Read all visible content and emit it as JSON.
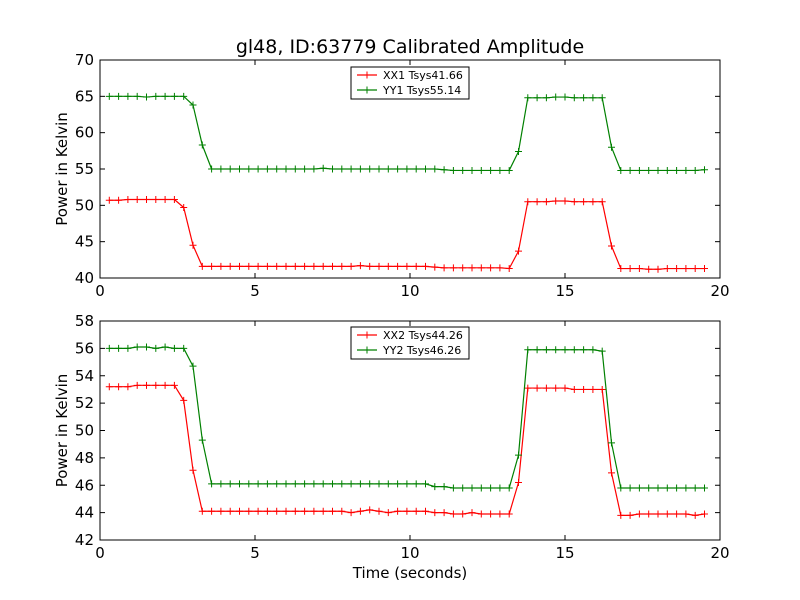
{
  "title": "gl48, ID:63779 Calibrated Amplitude",
  "chart_data": [
    {
      "type": "line",
      "ylabel": "Power in Kelvin",
      "xlabel": "",
      "xlim": [
        0,
        20
      ],
      "ylim": [
        40,
        70
      ],
      "xticks": [
        0,
        5,
        10,
        15,
        20
      ],
      "yticks": [
        40,
        45,
        50,
        55,
        60,
        65,
        70
      ],
      "legend": "top-center",
      "grid": false,
      "x": [
        0.3,
        0.6,
        0.9,
        1.2,
        1.5,
        1.8,
        2.1,
        2.4,
        2.7,
        3.0,
        3.3,
        3.6,
        3.9,
        4.2,
        4.5,
        4.8,
        5.1,
        5.4,
        5.7,
        6.0,
        6.3,
        6.6,
        6.9,
        7.2,
        7.5,
        7.8,
        8.1,
        8.4,
        8.7,
        9.0,
        9.3,
        9.6,
        9.9,
        10.2,
        10.5,
        10.8,
        11.1,
        11.4,
        11.7,
        12.0,
        12.3,
        12.6,
        12.9,
        13.2,
        13.5,
        13.8,
        14.1,
        14.4,
        14.7,
        15.0,
        15.3,
        15.6,
        15.9,
        16.2,
        16.5,
        16.8,
        17.1,
        17.4,
        17.7,
        18.0,
        18.3,
        18.6,
        18.9,
        19.2,
        19.5
      ],
      "series": [
        {
          "name": "XX1 Tsys41.66",
          "color": "#ff0000",
          "values": [
            50.7,
            50.7,
            50.8,
            50.8,
            50.8,
            50.8,
            50.8,
            50.8,
            49.7,
            44.5,
            41.6,
            41.6,
            41.6,
            41.6,
            41.6,
            41.6,
            41.6,
            41.6,
            41.6,
            41.6,
            41.6,
            41.6,
            41.6,
            41.6,
            41.6,
            41.6,
            41.6,
            41.7,
            41.6,
            41.6,
            41.6,
            41.6,
            41.6,
            41.6,
            41.6,
            41.5,
            41.4,
            41.4,
            41.4,
            41.4,
            41.4,
            41.4,
            41.4,
            41.3,
            43.7,
            50.5,
            50.5,
            50.5,
            50.6,
            50.6,
            50.5,
            50.5,
            50.5,
            50.5,
            44.4,
            41.3,
            41.3,
            41.3,
            41.2,
            41.2,
            41.3,
            41.3,
            41.3,
            41.3,
            41.3
          ]
        },
        {
          "name": "YY1 Tsys55.14",
          "color": "#008000",
          "values": [
            65.0,
            65.0,
            65.0,
            65.0,
            64.9,
            65.0,
            65.0,
            65.0,
            65.0,
            63.8,
            58.3,
            55.0,
            55.0,
            55.0,
            55.0,
            55.0,
            55.0,
            55.0,
            55.0,
            55.0,
            55.0,
            55.0,
            55.0,
            55.1,
            55.0,
            55.0,
            55.0,
            55.0,
            55.0,
            55.0,
            55.0,
            55.0,
            55.0,
            55.0,
            55.0,
            55.0,
            54.9,
            54.8,
            54.8,
            54.8,
            54.8,
            54.8,
            54.8,
            54.8,
            57.4,
            64.8,
            64.8,
            64.8,
            64.9,
            64.9,
            64.8,
            64.8,
            64.8,
            64.8,
            58.0,
            54.8,
            54.8,
            54.8,
            54.8,
            54.8,
            54.8,
            54.8,
            54.8,
            54.8,
            54.9
          ]
        }
      ]
    },
    {
      "type": "line",
      "ylabel": "Power in Kelvin",
      "xlabel": "Time (seconds)",
      "xlim": [
        0,
        20
      ],
      "ylim": [
        42,
        58
      ],
      "xticks": [
        0,
        5,
        10,
        15,
        20
      ],
      "yticks": [
        42,
        44,
        46,
        48,
        50,
        52,
        54,
        56,
        58
      ],
      "legend": "top-center",
      "grid": false,
      "x": [
        0.3,
        0.6,
        0.9,
        1.2,
        1.5,
        1.8,
        2.1,
        2.4,
        2.7,
        3.0,
        3.3,
        3.6,
        3.9,
        4.2,
        4.5,
        4.8,
        5.1,
        5.4,
        5.7,
        6.0,
        6.3,
        6.6,
        6.9,
        7.2,
        7.5,
        7.8,
        8.1,
        8.4,
        8.7,
        9.0,
        9.3,
        9.6,
        9.9,
        10.2,
        10.5,
        10.8,
        11.1,
        11.4,
        11.7,
        12.0,
        12.3,
        12.6,
        12.9,
        13.2,
        13.5,
        13.8,
        14.1,
        14.4,
        14.7,
        15.0,
        15.3,
        15.6,
        15.9,
        16.2,
        16.5,
        16.8,
        17.1,
        17.4,
        17.7,
        18.0,
        18.3,
        18.6,
        18.9,
        19.2,
        19.5
      ],
      "series": [
        {
          "name": "XX2 Tsys44.26",
          "color": "#ff0000",
          "values": [
            53.2,
            53.2,
            53.2,
            53.3,
            53.3,
            53.3,
            53.3,
            53.3,
            52.2,
            47.1,
            44.1,
            44.1,
            44.1,
            44.1,
            44.1,
            44.1,
            44.1,
            44.1,
            44.1,
            44.1,
            44.1,
            44.1,
            44.1,
            44.1,
            44.1,
            44.1,
            44.0,
            44.1,
            44.2,
            44.1,
            44.0,
            44.1,
            44.1,
            44.1,
            44.1,
            44.0,
            44.0,
            43.9,
            43.9,
            44.0,
            43.9,
            43.9,
            43.9,
            43.9,
            46.2,
            53.1,
            53.1,
            53.1,
            53.1,
            53.1,
            53.0,
            53.0,
            53.0,
            53.0,
            46.9,
            43.8,
            43.8,
            43.9,
            43.9,
            43.9,
            43.9,
            43.9,
            43.9,
            43.8,
            43.9
          ]
        },
        {
          "name": "YY2 Tsys46.26",
          "color": "#008000",
          "values": [
            56.0,
            56.0,
            56.0,
            56.1,
            56.1,
            56.0,
            56.1,
            56.0,
            56.0,
            54.7,
            49.3,
            46.1,
            46.1,
            46.1,
            46.1,
            46.1,
            46.1,
            46.1,
            46.1,
            46.1,
            46.1,
            46.1,
            46.1,
            46.1,
            46.1,
            46.1,
            46.1,
            46.1,
            46.1,
            46.1,
            46.1,
            46.1,
            46.1,
            46.1,
            46.1,
            45.9,
            45.9,
            45.8,
            45.8,
            45.8,
            45.8,
            45.8,
            45.8,
            45.8,
            48.2,
            55.9,
            55.9,
            55.9,
            55.9,
            55.9,
            55.9,
            55.9,
            55.9,
            55.8,
            49.1,
            45.8,
            45.8,
            45.8,
            45.8,
            45.8,
            45.8,
            45.8,
            45.8,
            45.8,
            45.8
          ]
        }
      ]
    }
  ]
}
